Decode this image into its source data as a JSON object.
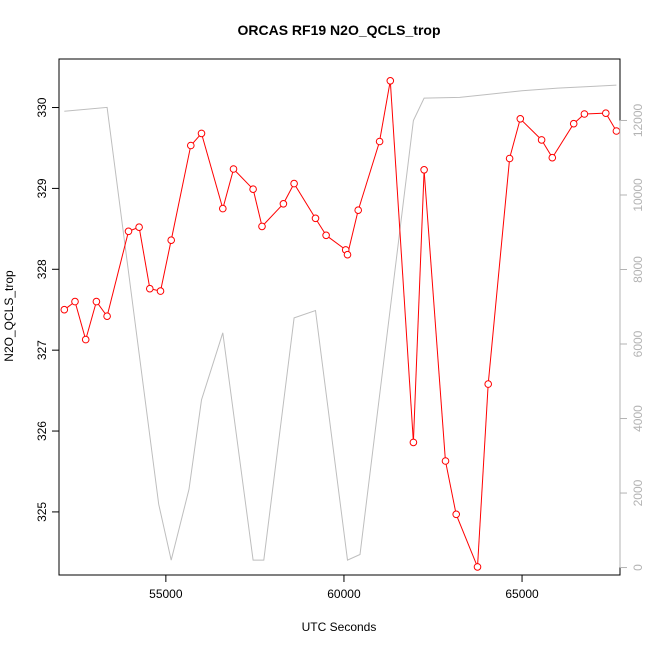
{
  "chart_data": {
    "type": "line",
    "title": "ORCAS RF19 N2O_QCLS_trop",
    "xlabel": "UTC Seconds",
    "ylabel": "N2O_QCLS_trop",
    "xlim": [
      52000,
      67750
    ],
    "ylim": [
      324.22,
      330.6
    ],
    "y2lim": [
      -200,
      13650
    ],
    "x_ticks": [
      55000,
      60000,
      65000
    ],
    "y_ticks": [
      325,
      326,
      327,
      328,
      329,
      330
    ],
    "y2_ticks": [
      0,
      2000,
      4000,
      6000,
      8000,
      10000,
      12000
    ],
    "colors": {
      "primary": "#ff0000",
      "secondary": "#bebebe",
      "secondary_axis": "#b3b3b3"
    },
    "series": [
      {
        "role": "primary",
        "marker": "open-circle",
        "x": [
          52150,
          52450,
          52750,
          53050,
          53350,
          53950,
          54250,
          54550,
          54850,
          55150,
          55700,
          56000,
          56600,
          56900,
          57450,
          57700,
          58300,
          58600,
          59200,
          59500,
          60050,
          60100,
          60400,
          61000,
          61300,
          61950,
          62250,
          62850,
          63150,
          63750,
          64050,
          64650,
          64950,
          65550,
          65850,
          66450,
          66750,
          67350,
          67650
        ],
        "y": [
          327.5,
          327.6,
          327.13,
          327.6,
          327.42,
          328.47,
          328.52,
          327.76,
          327.73,
          328.36,
          329.53,
          329.68,
          328.75,
          329.24,
          328.99,
          328.53,
          328.81,
          329.06,
          328.63,
          328.42,
          328.24,
          328.18,
          328.73,
          329.58,
          330.33,
          325.86,
          329.23,
          325.63,
          324.97,
          324.32,
          326.58,
          329.37,
          329.86,
          329.6,
          329.38,
          329.8,
          329.92,
          329.93,
          329.71
        ]
      },
      {
        "role": "secondary",
        "x": [
          52150,
          53350,
          54800,
          55150,
          55650,
          56000,
          56600,
          57450,
          57750,
          58600,
          59200,
          60100,
          60450,
          61950,
          62250,
          63250,
          64050,
          65000,
          66000,
          67050,
          67650
        ],
        "y": [
          12250,
          12350,
          1700,
          200,
          2100,
          4500,
          6300,
          200,
          200,
          6700,
          6900,
          200,
          350,
          12000,
          12600,
          12620,
          12700,
          12800,
          12870,
          12920,
          12950
        ]
      }
    ]
  }
}
